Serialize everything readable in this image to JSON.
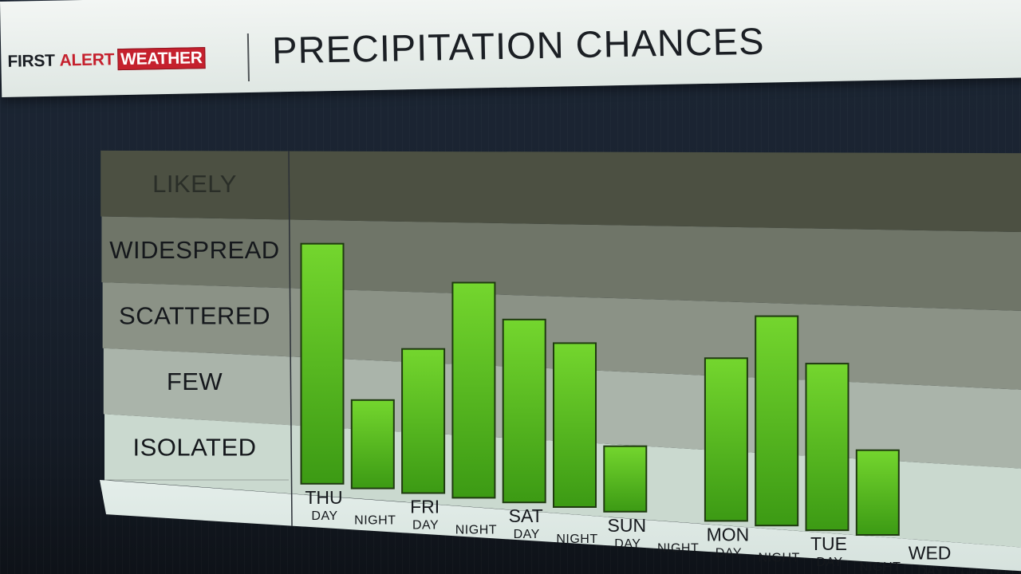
{
  "header": {
    "brand": {
      "first": "FIRST",
      "alert": "ALERT",
      "weather": "WEATHER"
    },
    "title": "PRECIPITATION CHANCES"
  },
  "colors": {
    "bar_top": "#74d62e",
    "bar_bottom": "#3c9a14",
    "band_likely": "#4c5042",
    "band_widespread": "#6f7568",
    "band_scattered": "#8b9286",
    "band_few": "#aab4aa",
    "band_isolated": "#cad9cf",
    "band_base": "#e4eeea",
    "axis_text": "#15181c"
  },
  "chart_data": {
    "type": "bar",
    "y_categories": [
      "ISOLATED",
      "FEW",
      "SCATTERED",
      "WIDESPREAD",
      "LIKELY"
    ],
    "days": [
      "THU",
      "FRI",
      "SAT",
      "SUN",
      "MON",
      "TUE",
      "WED"
    ],
    "periods": [
      "DAY",
      "NIGHT"
    ],
    "categories": [
      "THU DAY",
      "THU NIGHT",
      "FRI DAY",
      "FRI NIGHT",
      "SAT DAY",
      "SAT NIGHT",
      "SUN DAY",
      "SUN NIGHT",
      "MON DAY",
      "MON NIGHT",
      "TUE DAY",
      "TUE NIGHT",
      "WED DAY",
      "WED NIGHT"
    ],
    "values": [
      3.6,
      1.3,
      2.1,
      3.1,
      2.6,
      2.3,
      0.9,
      0,
      2.2,
      2.8,
      2.2,
      1.1,
      0,
      0
    ],
    "ylim": [
      0,
      5
    ]
  }
}
